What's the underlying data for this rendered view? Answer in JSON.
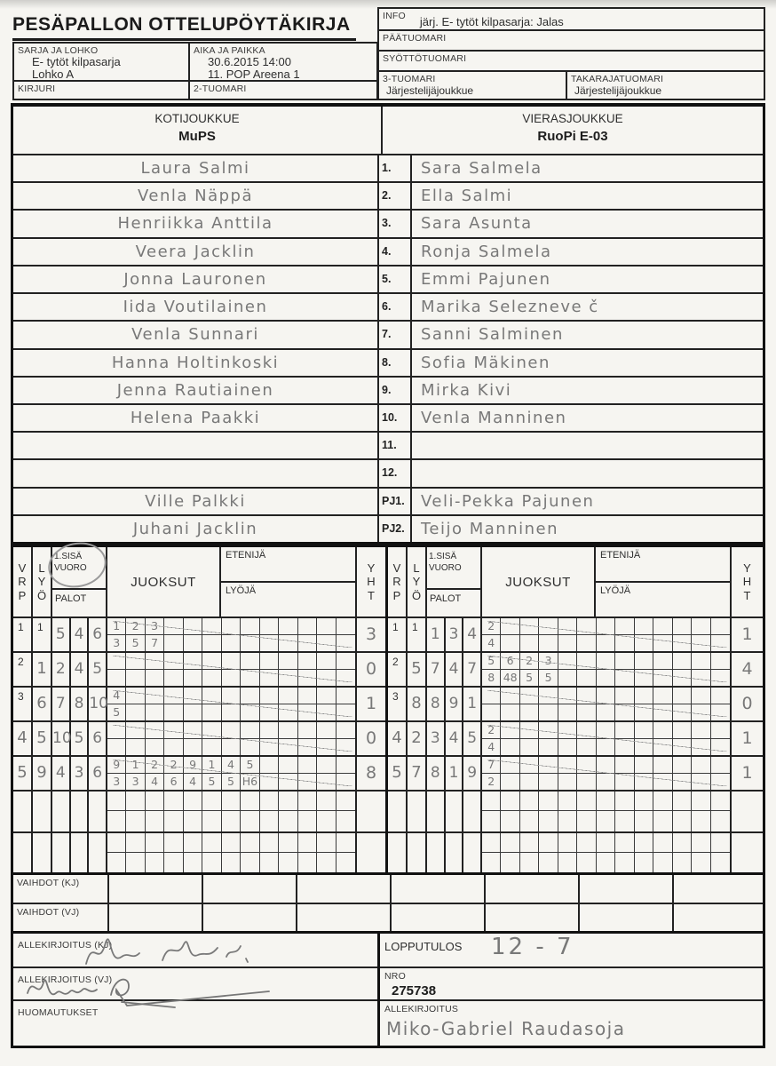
{
  "title": "PESÄPALLON OTTELUPÖYTÄKIRJA",
  "header": {
    "sarja": {
      "label": "SARJA JA LOHKO",
      "line1": "E- tytöt kilpasarja",
      "line2": "Lohko A"
    },
    "aika": {
      "label": "AIKA JA PAIKKA",
      "line1": "30.6.2015 14:00",
      "line2": "11. POP Areena 1"
    },
    "kirjuri_label": "KIRJURI",
    "tuomari2_label": "2-TUOMARI",
    "info": {
      "label": "INFO",
      "value": "järj. E- tytöt kilpasarja: Jalas"
    },
    "paatuomari_label": "PÄÄTUOMARI",
    "syottotuomari_label": "SYÖTTÖTUOMARI",
    "tuomari3": {
      "label": "3-TUOMARI",
      "value": "Järjestelijäjoukkue"
    },
    "takaraja": {
      "label": "TAKARAJATUOMARI",
      "value": "Järjestelijäjoukkue"
    }
  },
  "teams": {
    "home_label": "KOTIJOUKKUE",
    "home_name": "MuPS",
    "away_label": "VIERASJOUKKUE",
    "away_name": "RuoPi E-03"
  },
  "roster": {
    "rows": [
      {
        "num": "1.",
        "home": "Laura Salmi",
        "away": "Sara Salmela"
      },
      {
        "num": "2.",
        "home": "Venla Näppä",
        "away": "Ella Salmi"
      },
      {
        "num": "3.",
        "home": "Henriikka Anttila",
        "away": "Sara Asunta"
      },
      {
        "num": "4.",
        "home": "Veera Jacklin",
        "away": "Ronja Salmela"
      },
      {
        "num": "5.",
        "home": "Jonna Lauronen",
        "away": "Emmi Pajunen"
      },
      {
        "num": "6.",
        "home": "Iida Voutilainen",
        "away": "Marika Selezneve č"
      },
      {
        "num": "7.",
        "home": "Venla Sunnari",
        "away": "Sanni Salminen"
      },
      {
        "num": "8.",
        "home": "Hanna Holtinkoski",
        "away": "Sofia Mäkinen"
      },
      {
        "num": "9.",
        "home": "Jenna Rautiainen",
        "away": "Mirka Kivi"
      },
      {
        "num": "10.",
        "home": "Helena Paakki",
        "away": "Venla Manninen"
      },
      {
        "num": "11.",
        "home": "",
        "away": ""
      },
      {
        "num": "12.",
        "home": "",
        "away": ""
      },
      {
        "num": "PJ1.",
        "home": "Ville Palkki",
        "away": "Veli-Pekka Pajunen"
      },
      {
        "num": "PJ2.",
        "home": "Juhani Jacklin",
        "away": "Teijo Manninen"
      }
    ]
  },
  "score": {
    "header": {
      "vrp": "V\nR\nP",
      "lyo": "L\nY\nÖ",
      "sisavuoro": "1.SISÄ\nVUORO",
      "palot": "PALOT",
      "juoksut": "JUOKSUT",
      "etenija": "ETENIJÄ",
      "lyoja": "LYÖJÄ",
      "yht": "Y\nH\nT"
    },
    "halves": [
      {
        "side": "home",
        "rows": [
          {
            "vrp": "1",
            "vrp_hand": false,
            "lyo": "1",
            "lyo_hand": false,
            "palot": [
              "5",
              "4",
              "6"
            ],
            "top": [
              "1",
              "2",
              "3"
            ],
            "bottom": [
              "3",
              "5",
              "7"
            ],
            "yht": "3",
            "struck": true
          },
          {
            "vrp": "2",
            "vrp_hand": false,
            "lyo": "1",
            "lyo_hand": true,
            "palot": [
              "2",
              "4",
              "5"
            ],
            "top": [],
            "bottom": [],
            "yht": "0",
            "struck": true
          },
          {
            "vrp": "3",
            "vrp_hand": false,
            "lyo": "6",
            "lyo_hand": true,
            "palot": [
              "7",
              "8",
              "10"
            ],
            "top": [
              "4"
            ],
            "bottom": [
              "5"
            ],
            "yht": "1",
            "struck": true
          },
          {
            "vrp": "4",
            "vrp_hand": true,
            "lyo": "5",
            "lyo_hand": true,
            "palot": [
              "10",
              "5",
              "6"
            ],
            "top": [],
            "bottom": [],
            "yht": "0",
            "struck": true
          },
          {
            "vrp": "5",
            "vrp_hand": true,
            "lyo": "9",
            "lyo_hand": true,
            "palot": [
              "4",
              "3",
              "6"
            ],
            "top": [
              "9",
              "1",
              "2",
              "2",
              "9",
              "1",
              "4",
              "5"
            ],
            "bottom": [
              "3",
              "3",
              "4",
              "6",
              "4",
              "5",
              "5",
              "H6"
            ],
            "yht": "8",
            "struck": true
          },
          {
            "vrp": "",
            "vrp_hand": true,
            "lyo": "",
            "lyo_hand": true,
            "palot": [
              "",
              "",
              ""
            ],
            "top": [],
            "bottom": [],
            "yht": "",
            "struck": false
          },
          {
            "vrp": "",
            "vrp_hand": true,
            "lyo": "",
            "lyo_hand": true,
            "palot": [
              "",
              "",
              ""
            ],
            "top": [],
            "bottom": [],
            "yht": "",
            "struck": false
          }
        ]
      },
      {
        "side": "away",
        "rows": [
          {
            "vrp": "1",
            "vrp_hand": false,
            "lyo": "1",
            "lyo_hand": false,
            "palot": [
              "1",
              "3",
              "4"
            ],
            "top": [
              "2"
            ],
            "bottom": [
              "4"
            ],
            "yht": "1",
            "struck": true
          },
          {
            "vrp": "2",
            "vrp_hand": false,
            "lyo": "5",
            "lyo_hand": true,
            "palot": [
              "7",
              "4",
              "7"
            ],
            "top": [
              "5",
              "6",
              "2",
              "3"
            ],
            "bottom": [
              "8",
              "48",
              "5",
              "5"
            ],
            "yht": "4",
            "struck": true
          },
          {
            "vrp": "3",
            "vrp_hand": false,
            "lyo": "8",
            "lyo_hand": true,
            "palot": [
              "8",
              "9",
              "1"
            ],
            "top": [],
            "bottom": [],
            "yht": "0",
            "struck": true
          },
          {
            "vrp": "4",
            "vrp_hand": true,
            "lyo": "2",
            "lyo_hand": true,
            "palot": [
              "3",
              "4",
              "5"
            ],
            "top": [
              "2"
            ],
            "bottom": [
              "4"
            ],
            "yht": "1",
            "struck": true
          },
          {
            "vrp": "5",
            "vrp_hand": true,
            "lyo": "7",
            "lyo_hand": true,
            "palot": [
              "8",
              "1",
              "9"
            ],
            "top": [
              "7"
            ],
            "bottom": [
              "2"
            ],
            "yht": "1",
            "struck": true
          },
          {
            "vrp": "",
            "vrp_hand": true,
            "lyo": "",
            "lyo_hand": true,
            "palot": [
              "",
              "",
              ""
            ],
            "top": [],
            "bottom": [],
            "yht": "",
            "struck": false
          },
          {
            "vrp": "",
            "vrp_hand": true,
            "lyo": "",
            "lyo_hand": true,
            "palot": [
              "",
              "",
              ""
            ],
            "top": [],
            "bottom": [],
            "yht": "",
            "struck": false
          }
        ]
      }
    ]
  },
  "vaihdot": {
    "kj_label": "VAIHDOT (KJ)",
    "vj_label": "VAIHDOT (VJ)"
  },
  "footer": {
    "allekirjoitus_kj_label": "ALLEKIRJOITUS (KJ)",
    "allekirjoitus_vj_label": "ALLEKIRJOITUS (VJ)",
    "huomautukset_label": "HUOMAUTUKSET",
    "lopputulos_label": "LOPPUTULOS",
    "lopputulos_value": "12 - 7",
    "nro_label": "NRO",
    "nro_value": "275738",
    "allekirjoitus_label": "ALLEKIRJOITUS",
    "allekirjoitus_value": "Miko-Gabriel Raudasoja"
  }
}
